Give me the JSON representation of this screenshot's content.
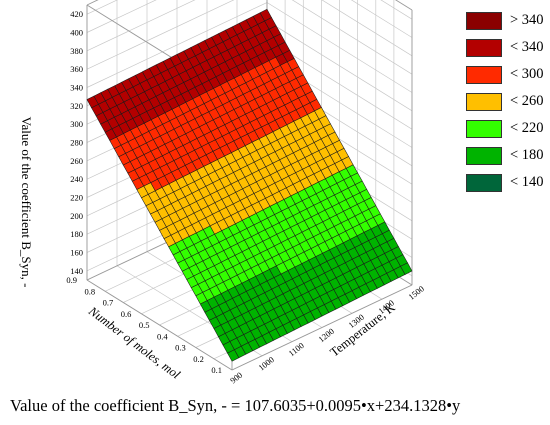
{
  "chart_data": {
    "type": "surface3d",
    "title": "",
    "caption": "Value of the coefficient B_Syn, - = 107.6035+0.0095•x+234.1328•y",
    "xlabel": "Temperature, K",
    "ylabel": "Number of moles, mol",
    "zlabel": "Value of the coefficient B_Syn, -",
    "x_ticks": [
      "900",
      "1000",
      "1100",
      "1200",
      "1300",
      "1400",
      "1500"
    ],
    "y_ticks": [
      "0.1",
      "0.2",
      "0.3",
      "0.4",
      "0.5",
      "0.6",
      "0.7",
      "0.8",
      "0.9"
    ],
    "z_ticks": [
      "140",
      "160",
      "180",
      "200",
      "220",
      "240",
      "260",
      "280",
      "300",
      "320",
      "340",
      "360",
      "380",
      "400",
      "420"
    ],
    "xlim": [
      900,
      1500
    ],
    "ylim": [
      0.1,
      0.9
    ],
    "zlim": [
      130,
      430
    ],
    "equation": {
      "intercept": 107.6035,
      "x_coef": 0.0095,
      "y_coef": 234.1328
    },
    "grid": true,
    "legend": {
      "placement": "top-right",
      "entries": [
        {
          "label": "> 340",
          "color": "#8b0000"
        },
        {
          "label": "< 340",
          "color": "#b30000"
        },
        {
          "label": "< 300",
          "color": "#ff2a00"
        },
        {
          "label": "< 260",
          "color": "#ffbf00"
        },
        {
          "label": "< 220",
          "color": "#33ff00"
        },
        {
          "label": "< 180",
          "color": "#00b300"
        },
        {
          "label": "< 140",
          "color": "#00663a"
        }
      ]
    }
  }
}
